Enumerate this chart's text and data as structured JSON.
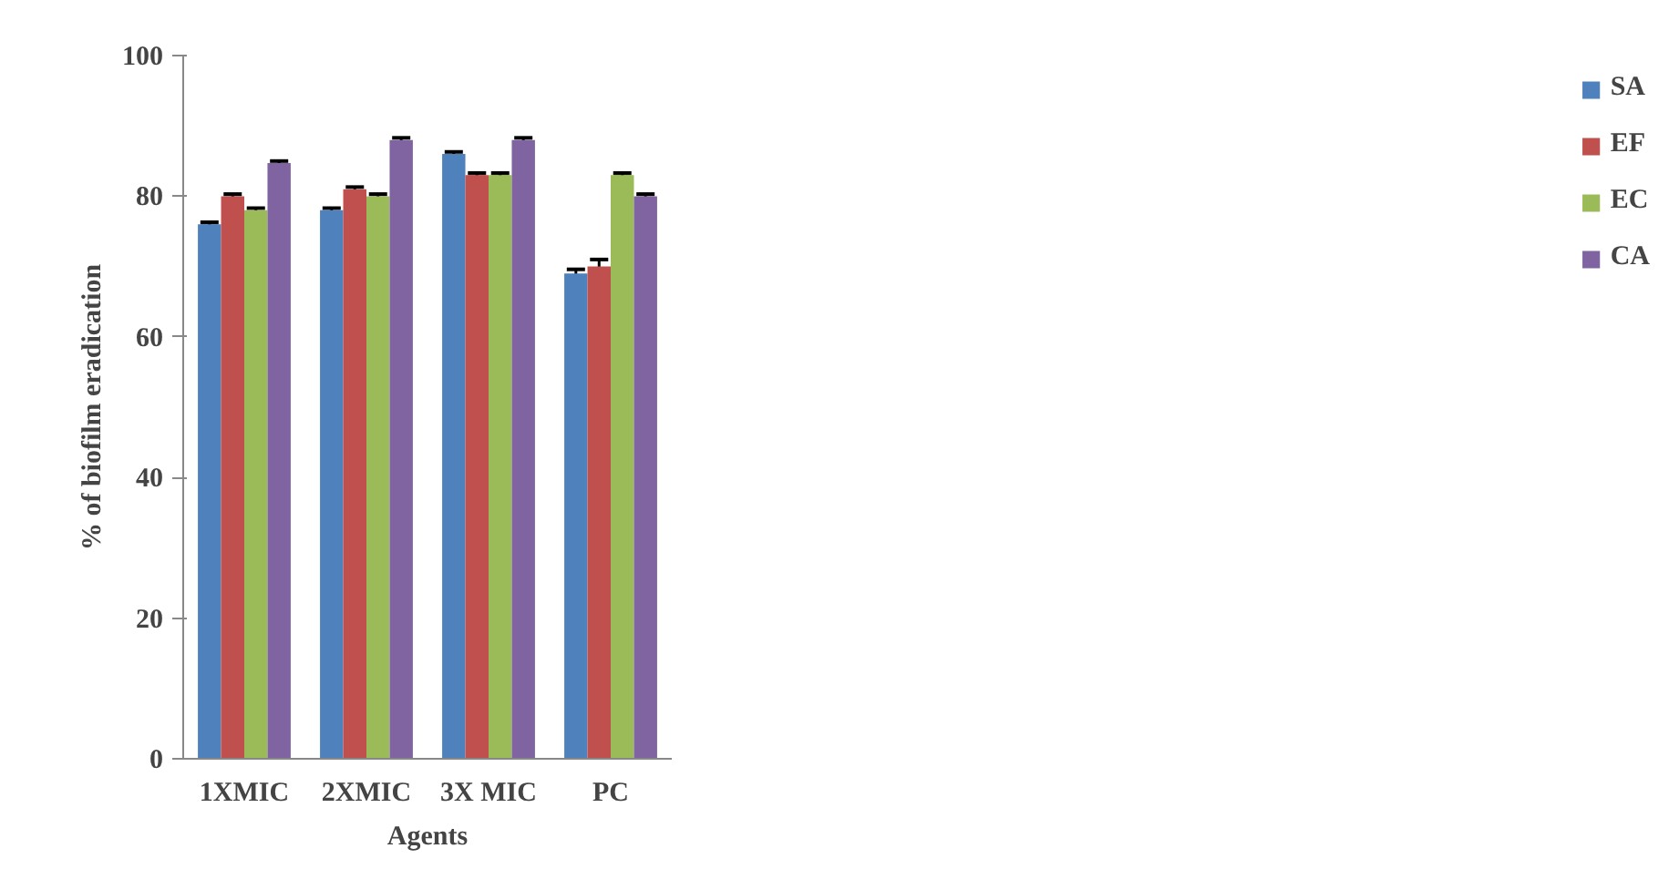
{
  "chart_data": {
    "type": "bar",
    "xlabel": "Agents",
    "ylabel": "% of biofilm eradication",
    "categories": [
      "1XMIC",
      "2XMIC",
      "3X MIC",
      "PC"
    ],
    "series": [
      {
        "name": "SA",
        "color": "#4f81bd",
        "values": [
          76,
          78,
          86,
          69
        ],
        "errors": [
          0.3,
          0.3,
          0.3,
          0.6
        ]
      },
      {
        "name": "EF",
        "color": "#c0504d",
        "values": [
          80,
          81,
          83,
          70
        ],
        "errors": [
          0.3,
          0.3,
          0.3,
          1
        ]
      },
      {
        "name": "EC",
        "color": "#9bbb59",
        "values": [
          78,
          80,
          83,
          83
        ],
        "errors": [
          0.3,
          0.3,
          0.3,
          0.3
        ]
      },
      {
        "name": "CA",
        "color": "#8064a2",
        "values": [
          84.7,
          88,
          88,
          80
        ],
        "errors": [
          0.3,
          0.3,
          0.3,
          0.3
        ]
      }
    ],
    "ylim": [
      0,
      100
    ],
    "yticks": [
      0,
      20,
      40,
      60,
      80,
      100
    ],
    "grid": false,
    "legend": "right"
  }
}
